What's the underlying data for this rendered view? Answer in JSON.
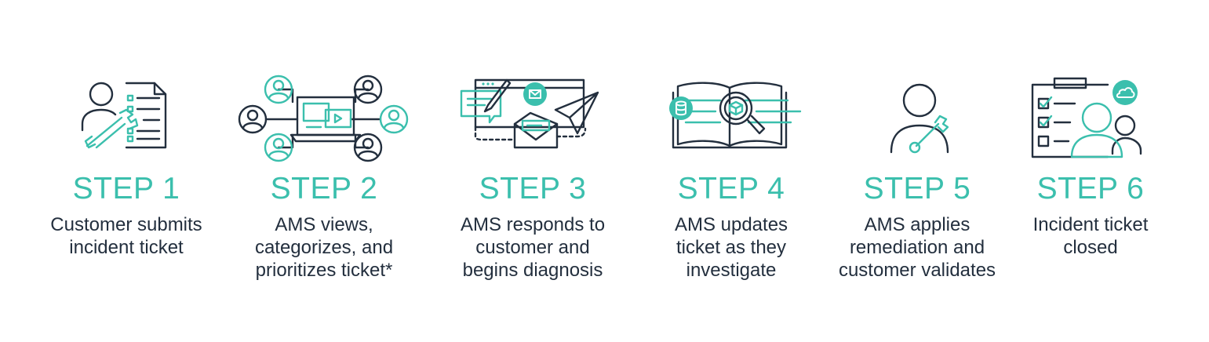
{
  "accent_color": "#3bbfad",
  "text_color": "#232f3e",
  "steps": [
    {
      "title": "STEP 1",
      "lines": [
        "Customer submits",
        "incident ticket"
      ],
      "icon": "person-document-wrench-icon"
    },
    {
      "title": "STEP 2",
      "lines": [
        "AMS views,",
        "categorizes, and",
        "prioritizes ticket*"
      ],
      "icon": "laptop-network-people-icon"
    },
    {
      "title": "STEP 3",
      "lines": [
        "AMS responds to",
        "customer and",
        "begins diagnosis"
      ],
      "icon": "messages-envelope-paperplane-icon"
    },
    {
      "title": "STEP 4",
      "lines": [
        "AMS updates",
        "ticket as they",
        "investigate"
      ],
      "icon": "book-magnifier-database-icon"
    },
    {
      "title": "STEP 5",
      "lines": [
        "AMS applies",
        "remediation and",
        "customer validates"
      ],
      "icon": "person-wrench-icon"
    },
    {
      "title": "STEP 6",
      "lines": [
        "Incident ticket",
        "closed"
      ],
      "icon": "clipboard-checklist-people-cloud-icon"
    }
  ]
}
